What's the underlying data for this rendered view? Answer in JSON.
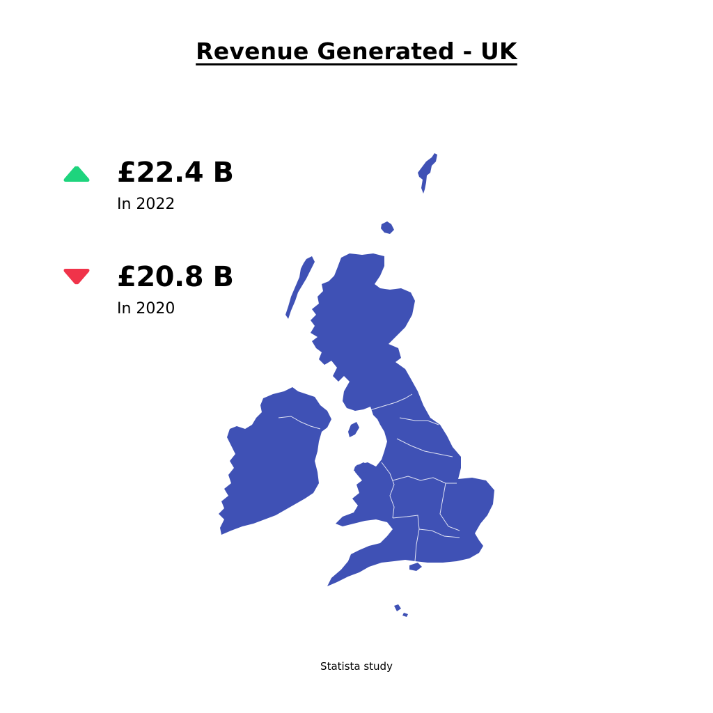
{
  "title": "Revenue Generated - UK",
  "stats": [
    {
      "value": "£22.4 B",
      "caption": "In 2022",
      "trend": "up",
      "color": "#1ed47d"
    },
    {
      "value": "£20.8 B",
      "caption": "In 2020",
      "trend": "down",
      "color": "#f0334a"
    }
  ],
  "map": {
    "region": "UK",
    "fill_color": "#3f51b5",
    "border_color": "#ffffff"
  },
  "source": "Statista study"
}
